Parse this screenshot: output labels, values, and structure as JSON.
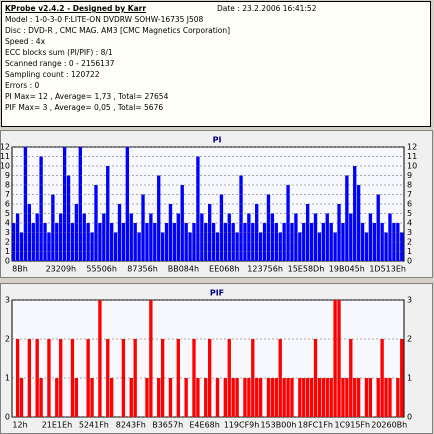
{
  "header": {
    "title": "KProbe v2.4.2 - Designed by Karr",
    "date": "Date : 23.2.2006 16:41:52",
    "lines": [
      "Model : 1-0-3-0 F:LITE-ON DVDRW SOHW-16735 J508",
      "Disc : DVD-R , CMC MAG. AM3 [CMC Magnetics Corporation]",
      "Speed : 4x",
      "ECC blocks sum (PI/PIF) : 8/1",
      "Scanned range : 0 - 2156137",
      "Sampling count : 120722",
      "Errors : 0",
      "PI Max= 12 , Average= 1,73 , Total= 27654",
      "PIF Max= 3 , Average= 0,05 , Total= 5676"
    ]
  },
  "chart_data": [
    {
      "type": "bar",
      "title": "PI",
      "color": "#0000ff",
      "grid": true,
      "ylim": [
        0,
        12
      ],
      "yticks": [
        0,
        1,
        2,
        3,
        4,
        5,
        6,
        7,
        8,
        9,
        10,
        11,
        12
      ],
      "xtick_labels": [
        "8Bh",
        "23209h",
        "55506h",
        "87356h",
        "BB084h",
        "EE068h",
        "123756h",
        "15E58Dh",
        "19B045h",
        "1D513Eh"
      ],
      "values": [
        4,
        5,
        3,
        12,
        6,
        4,
        5,
        11,
        4,
        3,
        7,
        4,
        5,
        12,
        9,
        4,
        6,
        12,
        5,
        4,
        3,
        8,
        4,
        5,
        10,
        4,
        3,
        6,
        4,
        12,
        5,
        4,
        3,
        7,
        4,
        5,
        4,
        9,
        3,
        4,
        6,
        4,
        5,
        8,
        4,
        3,
        4,
        11,
        5,
        4,
        6,
        4,
        3,
        7,
        4,
        5,
        4,
        3,
        9,
        4,
        5,
        4,
        6,
        3,
        4,
        7,
        5,
        4,
        3,
        4,
        8,
        4,
        5,
        3,
        4,
        6,
        4,
        5,
        3,
        4,
        5,
        4,
        3,
        6,
        4,
        9,
        5,
        10,
        8,
        4,
        3,
        5,
        4,
        7,
        4,
        3,
        5,
        4,
        4,
        3
      ]
    },
    {
      "type": "bar",
      "title": "PIF",
      "color": "#ff0000",
      "grid": true,
      "ylim": [
        0,
        3
      ],
      "yticks": [
        0,
        1,
        2,
        3
      ],
      "xtick_labels": [
        "12h",
        "21E1Eh",
        "5241Fh",
        "8243Fh",
        "B3657h",
        "E4E68h",
        "119CF9h",
        "153B00h",
        "18FC1Fh",
        "1C915Fh",
        "20260Bh"
      ],
      "values": [
        0,
        2,
        1,
        0,
        2,
        0,
        2,
        1,
        0,
        2,
        0,
        1,
        2,
        0,
        0,
        2,
        1,
        0,
        0,
        2,
        1,
        0,
        3,
        0,
        2,
        1,
        0,
        0,
        2,
        0,
        1,
        2,
        0,
        0,
        1,
        3,
        0,
        1,
        2,
        0,
        1,
        0,
        2,
        0,
        1,
        0,
        2,
        1,
        0,
        1,
        2,
        0,
        1,
        0,
        1,
        2,
        1,
        1,
        0,
        1,
        1,
        2,
        1,
        1,
        0,
        1,
        1,
        1,
        2,
        1,
        1,
        1,
        0,
        1,
        1,
        1,
        1,
        2,
        1,
        1,
        1,
        1,
        3,
        3,
        1,
        1,
        2,
        1,
        1,
        0,
        1,
        1,
        0,
        1,
        2,
        1,
        1,
        0,
        1,
        2
      ]
    }
  ]
}
